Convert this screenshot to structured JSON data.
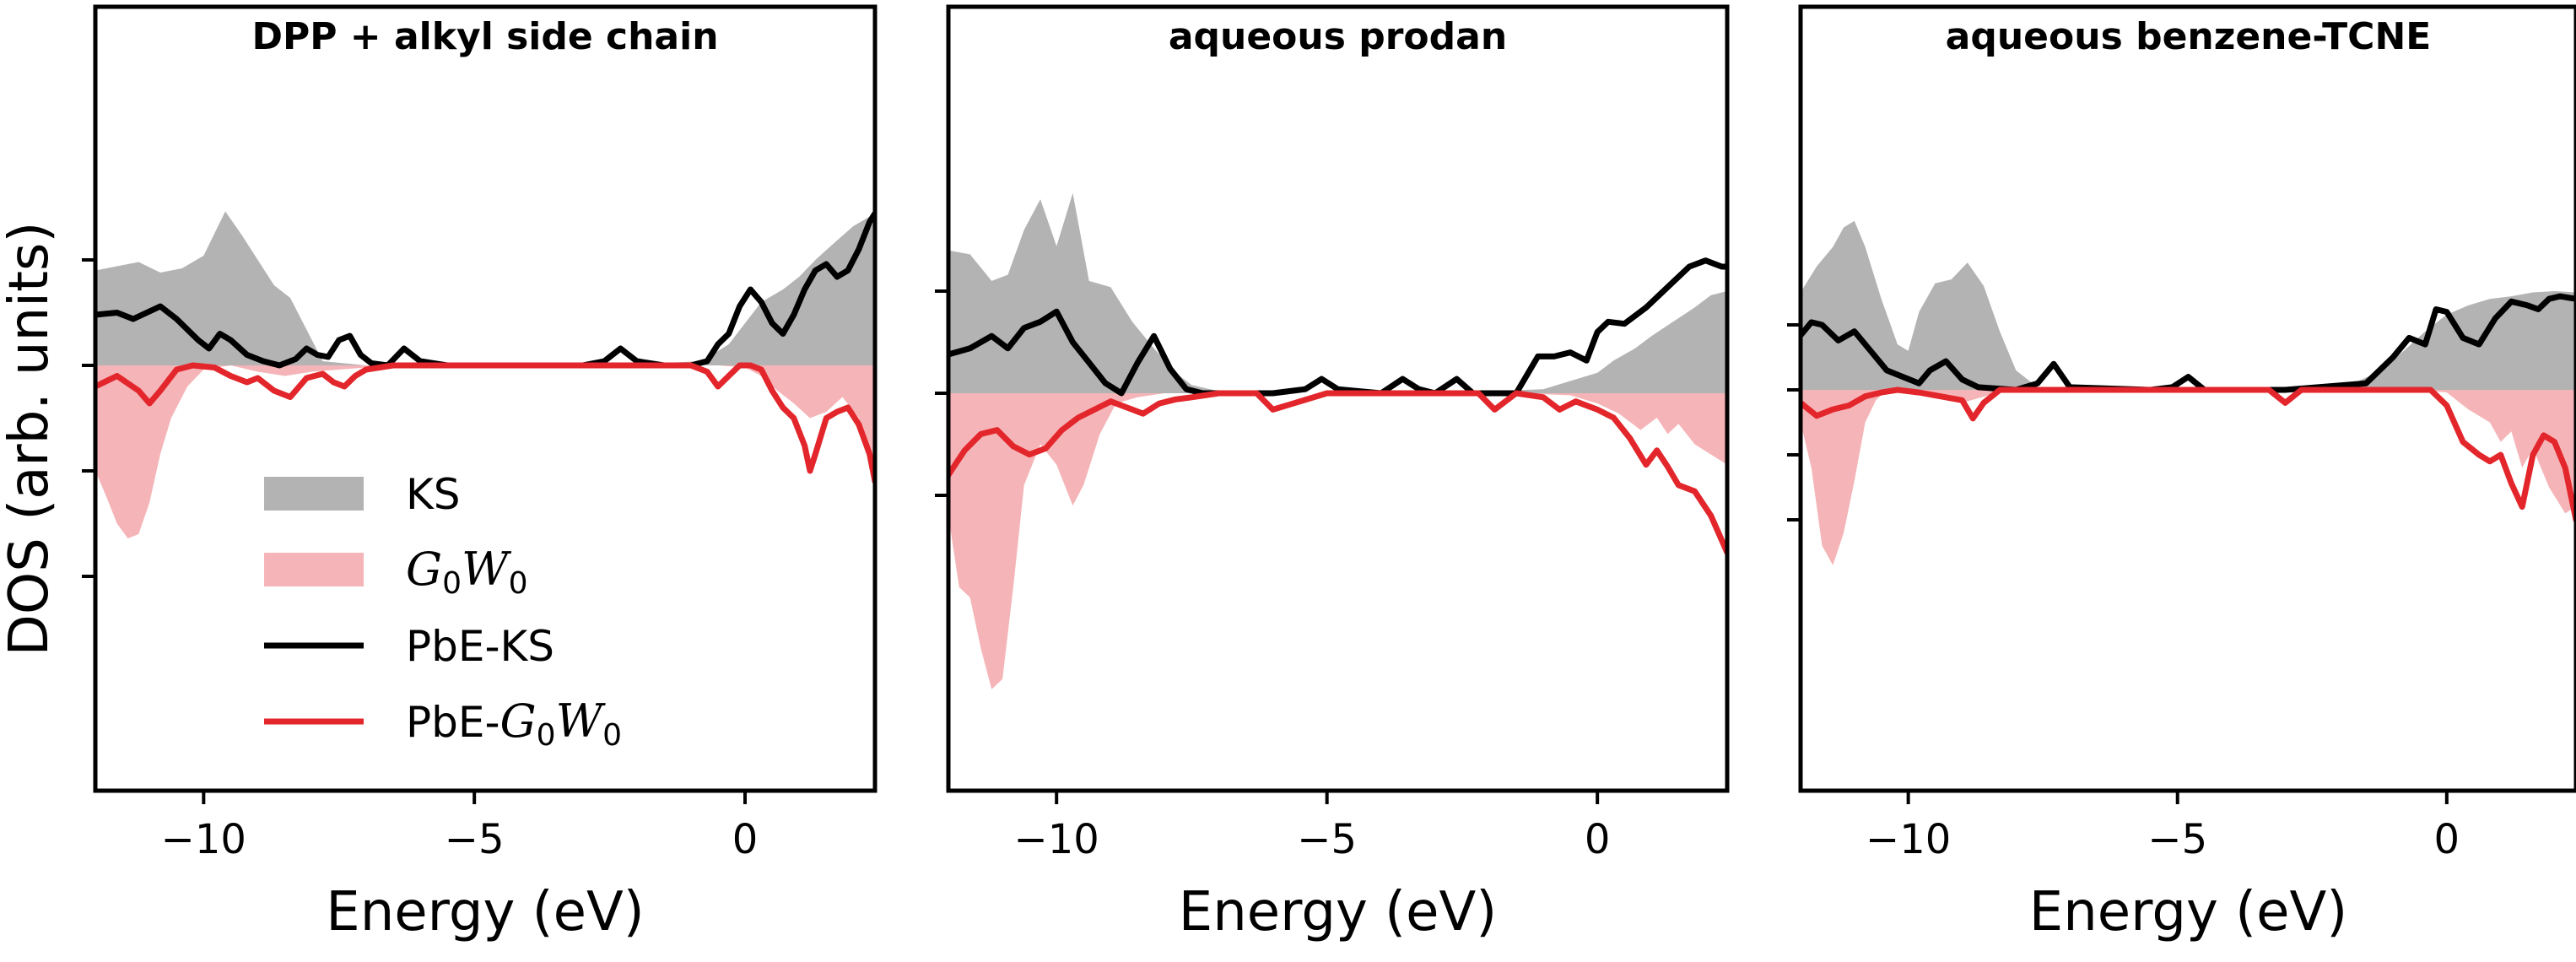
{
  "figure": {
    "ylabel": "DOS (arb. units)",
    "legend": {
      "position": "lower-left of first panel",
      "entries": [
        {
          "key": "KS",
          "label": "KS",
          "style": "fill",
          "color": "#b3b3b3"
        },
        {
          "key": "G0W0",
          "label": "G0W0",
          "style": "fill",
          "color": "#f5b5b8"
        },
        {
          "key": "PbE-KS",
          "label": "PbE-KS",
          "style": "line",
          "color": "#000000"
        },
        {
          "key": "PbE-G0W0",
          "label": "PbE-G0W0",
          "style": "line",
          "color": "#e3262b"
        }
      ]
    }
  },
  "chart_data": [
    {
      "type": "area",
      "title": "DPP + alkyl side chain",
      "xlabel": "Energy (eV)",
      "ylabel": "DOS (arb. units)",
      "xlim": [
        -12.0,
        2.4
      ],
      "ylim": [
        -1.0,
        1.0
      ],
      "xticks": [
        -10,
        -5,
        0
      ],
      "xtick_labels": [
        "−10",
        "−5",
        "0"
      ],
      "yticks": [
        -1.0,
        -0.5,
        0.0,
        0.5
      ],
      "ytick_labels": [
        "",
        "",
        "",
        ""
      ],
      "grid": false,
      "series": [
        {
          "name": "KS",
          "kind": "fill",
          "sign": "positive",
          "x": [
            -12.0,
            -11.6,
            -11.2,
            -10.8,
            -10.4,
            -10.0,
            -9.6,
            -9.3,
            -9.0,
            -8.7,
            -8.4,
            -8.1,
            -7.8,
            -7.0,
            -2.5,
            -0.8,
            -0.3,
            0.0,
            0.3,
            0.7,
            1.0,
            1.3,
            1.6,
            2.0,
            2.4
          ],
          "y": [
            0.45,
            0.47,
            0.49,
            0.44,
            0.46,
            0.52,
            0.73,
            0.62,
            0.5,
            0.38,
            0.32,
            0.17,
            0.02,
            0.0,
            0.0,
            0.02,
            0.1,
            0.2,
            0.3,
            0.36,
            0.42,
            0.5,
            0.57,
            0.66,
            0.72
          ]
        },
        {
          "name": "G0W0",
          "kind": "fill",
          "sign": "negative",
          "x": [
            -12.0,
            -11.8,
            -11.6,
            -11.4,
            -11.2,
            -11.0,
            -10.8,
            -10.6,
            -10.3,
            -10.0,
            -9.5,
            -9.0,
            -8.5,
            -8.0,
            -7.5,
            -7.0,
            -6.5,
            -1.0,
            -0.5,
            0.0,
            0.3,
            0.6,
            0.9,
            1.2,
            1.5,
            1.8,
            2.1,
            2.4
          ],
          "y": [
            -0.5,
            -0.62,
            -0.75,
            -0.82,
            -0.8,
            -0.65,
            -0.42,
            -0.25,
            -0.1,
            -0.02,
            0.0,
            -0.03,
            -0.05,
            -0.03,
            -0.02,
            -0.01,
            0.0,
            0.0,
            0.0,
            -0.01,
            -0.05,
            -0.12,
            -0.18,
            -0.25,
            -0.22,
            -0.15,
            -0.25,
            -0.5
          ]
        },
        {
          "name": "PbE-KS",
          "kind": "line",
          "x": [
            -12.0,
            -11.6,
            -11.3,
            -10.8,
            -10.5,
            -10.1,
            -9.9,
            -9.7,
            -9.5,
            -9.2,
            -8.9,
            -8.6,
            -8.3,
            -8.1,
            -7.9,
            -7.7,
            -7.5,
            -7.3,
            -7.1,
            -6.9,
            -6.6,
            -6.3,
            -6.0,
            -5.5,
            -3.0,
            -2.6,
            -2.3,
            -2.0,
            -1.5,
            -1.0,
            -0.7,
            -0.5,
            -0.3,
            -0.1,
            0.1,
            0.3,
            0.5,
            0.7,
            0.9,
            1.1,
            1.3,
            1.5,
            1.7,
            1.9,
            2.1,
            2.3,
            2.4
          ],
          "y": [
            0.24,
            0.25,
            0.22,
            0.28,
            0.22,
            0.12,
            0.08,
            0.15,
            0.12,
            0.05,
            0.02,
            0.0,
            0.03,
            0.08,
            0.05,
            0.04,
            0.12,
            0.14,
            0.05,
            0.01,
            0.0,
            0.08,
            0.02,
            0.0,
            0.0,
            0.02,
            0.08,
            0.02,
            0.0,
            0.0,
            0.02,
            0.1,
            0.15,
            0.28,
            0.36,
            0.3,
            0.2,
            0.15,
            0.24,
            0.36,
            0.45,
            0.48,
            0.42,
            0.45,
            0.55,
            0.68,
            0.72
          ]
        },
        {
          "name": "PbE-G0W0",
          "kind": "line",
          "x": [
            -12.0,
            -11.6,
            -11.2,
            -11.0,
            -10.8,
            -10.5,
            -10.2,
            -9.8,
            -9.5,
            -9.2,
            -9.0,
            -8.7,
            -8.4,
            -8.1,
            -7.8,
            -7.6,
            -7.4,
            -7.2,
            -7.0,
            -6.5,
            -1.0,
            -0.7,
            -0.5,
            -0.3,
            -0.1,
            0.1,
            0.3,
            0.5,
            0.7,
            0.9,
            1.1,
            1.2,
            1.3,
            1.5,
            1.7,
            1.9,
            2.1,
            2.3,
            2.4
          ],
          "y": [
            -0.1,
            -0.05,
            -0.12,
            -0.18,
            -0.12,
            -0.02,
            0.0,
            -0.01,
            -0.05,
            -0.08,
            -0.06,
            -0.12,
            -0.15,
            -0.06,
            -0.04,
            -0.08,
            -0.1,
            -0.05,
            -0.02,
            0.0,
            0.0,
            -0.03,
            -0.1,
            -0.05,
            0.0,
            0.0,
            -0.02,
            -0.12,
            -0.2,
            -0.25,
            -0.38,
            -0.5,
            -0.42,
            -0.25,
            -0.22,
            -0.2,
            -0.28,
            -0.42,
            -0.55
          ]
        }
      ]
    },
    {
      "type": "area",
      "title": "aqueous prodan",
      "xlabel": "Energy (eV)",
      "ylabel": "",
      "xlim": [
        -12.0,
        2.4
      ],
      "ylim": [
        -1.0,
        1.0
      ],
      "xticks": [
        -10,
        -5,
        0
      ],
      "xtick_labels": [
        "−10",
        "−5",
        "0"
      ],
      "yticks": [
        -0.5,
        0.0,
        0.5
      ],
      "ytick_labels": [
        "",
        "",
        ""
      ],
      "grid": false,
      "series": [
        {
          "name": "KS",
          "kind": "fill",
          "sign": "positive",
          "x": [
            -12.0,
            -11.6,
            -11.2,
            -10.9,
            -10.6,
            -10.3,
            -10.0,
            -9.7,
            -9.4,
            -9.0,
            -8.6,
            -8.2,
            -7.8,
            -7.5,
            -7.0,
            -6.5,
            -3.0,
            -1.0,
            -0.5,
            0.0,
            0.3,
            0.7,
            1.0,
            1.4,
            1.8,
            2.1,
            2.4
          ],
          "y": [
            0.7,
            0.68,
            0.55,
            0.58,
            0.8,
            0.95,
            0.72,
            0.98,
            0.55,
            0.52,
            0.35,
            0.22,
            0.1,
            0.04,
            0.01,
            0.0,
            0.0,
            0.02,
            0.06,
            0.1,
            0.16,
            0.22,
            0.28,
            0.35,
            0.42,
            0.48,
            0.5
          ]
        },
        {
          "name": "G0W0",
          "kind": "fill",
          "sign": "negative",
          "x": [
            -12.0,
            -11.8,
            -11.6,
            -11.4,
            -11.2,
            -11.0,
            -10.8,
            -10.6,
            -10.3,
            -10.0,
            -9.7,
            -9.5,
            -9.2,
            -8.9,
            -8.5,
            -8.0,
            -7.0,
            -1.5,
            -0.5,
            0.0,
            0.4,
            0.8,
            1.1,
            1.3,
            1.5,
            1.8,
            2.1,
            2.4
          ],
          "y": [
            -0.6,
            -0.95,
            -1.0,
            -1.25,
            -1.45,
            -1.4,
            -0.95,
            -0.45,
            -0.25,
            -0.35,
            -0.55,
            -0.45,
            -0.2,
            -0.05,
            -0.02,
            0.0,
            0.0,
            0.0,
            -0.01,
            -0.05,
            -0.1,
            -0.18,
            -0.12,
            -0.2,
            -0.15,
            -0.25,
            -0.3,
            -0.35
          ]
        },
        {
          "name": "PbE-KS",
          "kind": "line",
          "x": [
            -12.0,
            -11.6,
            -11.2,
            -10.9,
            -10.6,
            -10.3,
            -10.0,
            -9.7,
            -9.4,
            -9.1,
            -8.8,
            -8.5,
            -8.2,
            -7.9,
            -7.6,
            -7.3,
            -7.0,
            -6.0,
            -5.4,
            -5.1,
            -4.8,
            -4.0,
            -3.6,
            -3.3,
            -3.0,
            -2.6,
            -2.3,
            -2.0,
            -1.5,
            -1.1,
            -0.8,
            -0.5,
            -0.2,
            0.0,
            0.2,
            0.5,
            0.9,
            1.3,
            1.7,
            2.0,
            2.3,
            2.4
          ],
          "y": [
            0.19,
            0.22,
            0.28,
            0.22,
            0.32,
            0.35,
            0.4,
            0.25,
            0.15,
            0.05,
            0.0,
            0.15,
            0.28,
            0.12,
            0.02,
            0.0,
            0.0,
            0.0,
            0.02,
            0.07,
            0.02,
            0.0,
            0.07,
            0.02,
            0.0,
            0.07,
            0.0,
            0.0,
            0.0,
            0.18,
            0.18,
            0.2,
            0.16,
            0.3,
            0.35,
            0.34,
            0.42,
            0.52,
            0.62,
            0.65,
            0.62,
            0.62
          ]
        },
        {
          "name": "PbE-G0W0",
          "kind": "line",
          "x": [
            -12.0,
            -11.7,
            -11.4,
            -11.1,
            -10.8,
            -10.5,
            -10.2,
            -9.9,
            -9.6,
            -9.3,
            -9.0,
            -8.7,
            -8.4,
            -8.1,
            -7.8,
            -7.5,
            -7.0,
            -6.3,
            -6.0,
            -5.0,
            -3.0,
            -2.2,
            -1.9,
            -1.5,
            -1.0,
            -0.7,
            -0.4,
            0.0,
            0.3,
            0.6,
            0.9,
            1.1,
            1.3,
            1.5,
            1.8,
            2.1,
            2.4
          ],
          "y": [
            -0.4,
            -0.28,
            -0.2,
            -0.18,
            -0.26,
            -0.3,
            -0.27,
            -0.18,
            -0.12,
            -0.08,
            -0.04,
            -0.07,
            -0.1,
            -0.05,
            -0.03,
            -0.02,
            0.0,
            0.0,
            -0.08,
            0.0,
            0.0,
            0.0,
            -0.08,
            0.0,
            -0.02,
            -0.08,
            -0.04,
            -0.08,
            -0.12,
            -0.22,
            -0.35,
            -0.28,
            -0.36,
            -0.45,
            -0.48,
            -0.6,
            -0.78
          ]
        }
      ]
    },
    {
      "type": "area",
      "title": "aqueous benzene-TCNE",
      "xlabel": "Energy (eV)",
      "ylabel": "",
      "xlim": [
        -12.0,
        2.4
      ],
      "ylim": [
        -1.0,
        1.0
      ],
      "xticks": [
        -10,
        -5,
        0
      ],
      "xtick_labels": [
        "−10",
        "−5",
        "0"
      ],
      "yticks": [
        -1.0,
        -0.5,
        0.0,
        0.5
      ],
      "ytick_labels": [
        "",
        "",
        "",
        ""
      ],
      "grid": false,
      "series": [
        {
          "name": "KS",
          "kind": "fill",
          "sign": "positive",
          "x": [
            -12.0,
            -11.7,
            -11.4,
            -11.2,
            -11.0,
            -10.8,
            -10.5,
            -10.2,
            -10.0,
            -9.8,
            -9.5,
            -9.2,
            -8.9,
            -8.6,
            -8.3,
            -8.0,
            -7.6,
            -7.0,
            -2.5,
            -1.8,
            -1.2,
            -0.8,
            -0.4,
            0.0,
            0.4,
            0.8,
            1.2,
            1.6,
            2.0,
            2.4
          ],
          "y": [
            0.75,
            0.95,
            1.1,
            1.25,
            1.3,
            1.1,
            0.7,
            0.35,
            0.3,
            0.6,
            0.82,
            0.85,
            0.98,
            0.8,
            0.45,
            0.15,
            0.02,
            0.0,
            0.0,
            0.04,
            0.15,
            0.3,
            0.45,
            0.58,
            0.65,
            0.7,
            0.72,
            0.75,
            0.76,
            0.75
          ]
        },
        {
          "name": "G0W0",
          "kind": "fill",
          "sign": "negative",
          "x": [
            -12.0,
            -11.8,
            -11.6,
            -11.4,
            -11.2,
            -11.0,
            -10.8,
            -10.6,
            -10.4,
            -10.0,
            -9.5,
            -9.0,
            -8.5,
            -8.0,
            -1.0,
            -0.5,
            0.0,
            0.4,
            0.8,
            1.0,
            1.2,
            1.4,
            1.6,
            1.9,
            2.2,
            2.4
          ],
          "y": [
            -0.25,
            -0.6,
            -1.2,
            -1.35,
            -1.1,
            -0.7,
            -0.25,
            -0.08,
            0.0,
            0.0,
            -0.05,
            -0.1,
            -0.04,
            0.0,
            0.0,
            0.0,
            -0.02,
            -0.15,
            -0.25,
            -0.4,
            -0.32,
            -0.6,
            -0.45,
            -0.75,
            -0.95,
            -0.9
          ]
        },
        {
          "name": "PbE-KS",
          "kind": "line",
          "x": [
            -12.0,
            -11.8,
            -11.6,
            -11.3,
            -11.0,
            -10.7,
            -10.4,
            -10.1,
            -9.8,
            -9.6,
            -9.3,
            -9.0,
            -8.7,
            -8.0,
            -7.6,
            -7.3,
            -7.0,
            -5.5,
            -5.1,
            -4.8,
            -4.5,
            -3.0,
            -1.5,
            -1.0,
            -0.7,
            -0.4,
            -0.2,
            0.0,
            0.3,
            0.6,
            0.9,
            1.2,
            1.5,
            1.7,
            1.9,
            2.1,
            2.4
          ],
          "y": [
            0.42,
            0.52,
            0.5,
            0.38,
            0.45,
            0.3,
            0.15,
            0.1,
            0.05,
            0.15,
            0.22,
            0.08,
            0.02,
            0.0,
            0.05,
            0.2,
            0.02,
            0.0,
            0.02,
            0.1,
            0.0,
            0.0,
            0.05,
            0.25,
            0.4,
            0.35,
            0.62,
            0.6,
            0.4,
            0.35,
            0.55,
            0.68,
            0.65,
            0.62,
            0.7,
            0.72,
            0.7
          ]
        },
        {
          "name": "PbE-G0W0",
          "kind": "line",
          "x": [
            -12.0,
            -11.7,
            -11.4,
            -11.1,
            -10.8,
            -10.5,
            -10.2,
            -9.8,
            -9.4,
            -9.0,
            -8.8,
            -8.6,
            -8.3,
            -8.0,
            -7.5,
            -3.3,
            -3.0,
            -2.7,
            -2.0,
            -1.0,
            -0.6,
            -0.3,
            0.0,
            0.3,
            0.6,
            0.8,
            1.0,
            1.2,
            1.4,
            1.6,
            1.8,
            2.0,
            2.2,
            2.4
          ],
          "y": [
            -0.1,
            -0.2,
            -0.15,
            -0.12,
            -0.05,
            -0.02,
            0.0,
            -0.02,
            -0.05,
            -0.08,
            -0.22,
            -0.1,
            0.0,
            0.0,
            0.0,
            0.0,
            -0.1,
            0.0,
            0.0,
            0.0,
            0.0,
            0.0,
            -0.12,
            -0.4,
            -0.5,
            -0.55,
            -0.5,
            -0.72,
            -0.9,
            -0.5,
            -0.35,
            -0.4,
            -0.6,
            -1.0
          ]
        }
      ]
    }
  ]
}
